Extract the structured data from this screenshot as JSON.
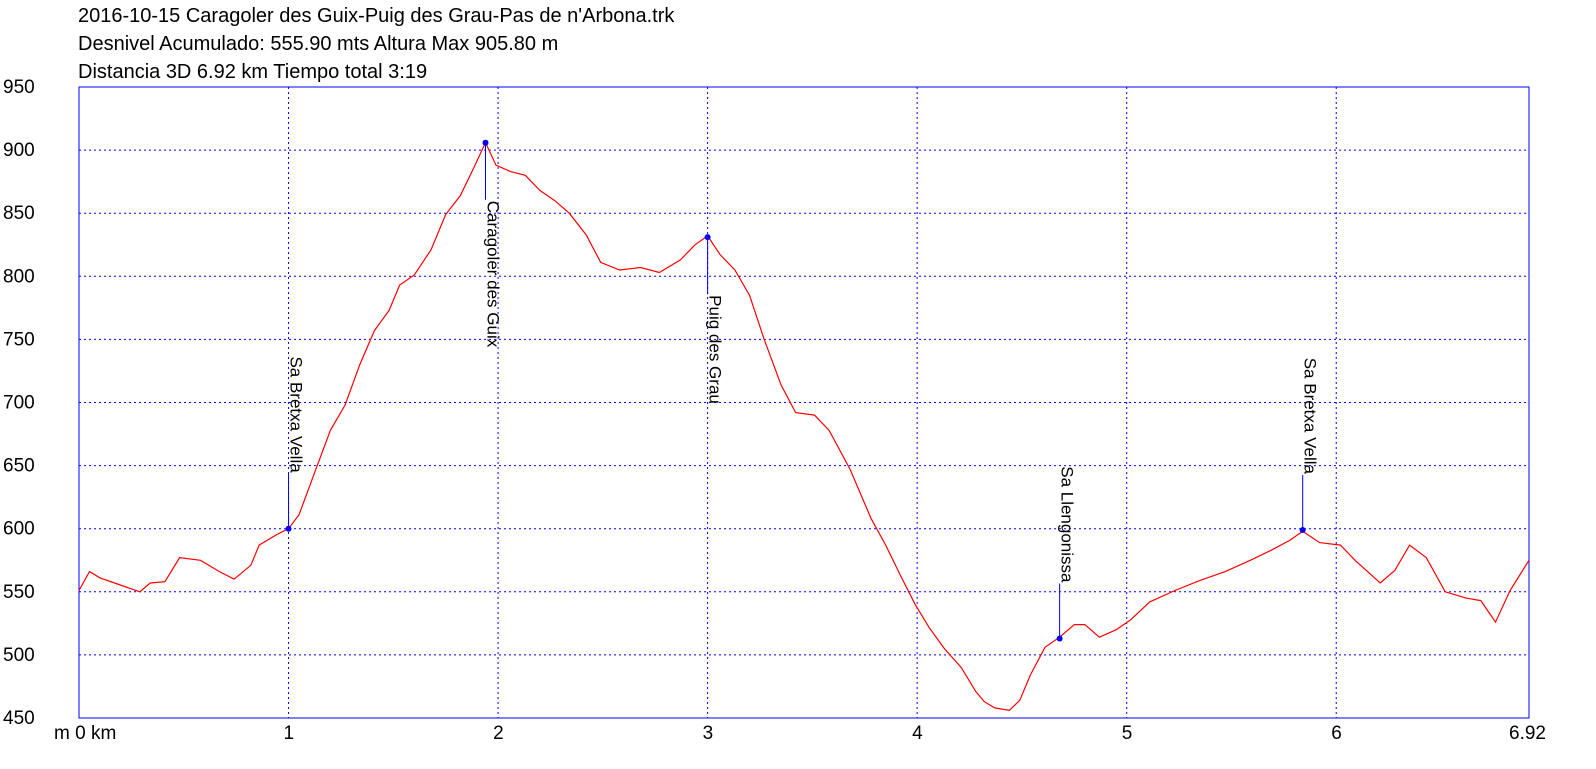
{
  "chart_data": {
    "type": "line",
    "title_lines": [
      "2016-10-15 Caragoler des Guix-Puig des Grau-Pas de n'Arbona.trk",
      "Desnivel Acumulado: 555.90 mts  Altura Max 905.80 m",
      "Distancia 3D 6.92 km  Tiempo total 3:19"
    ],
    "x": [
      0,
      0.05,
      0.1,
      0.17,
      0.29,
      0.34,
      0.41,
      0.48,
      0.58,
      0.67,
      0.74,
      0.82,
      0.86,
      0.94,
      1.0,
      1.05,
      1.13,
      1.2,
      1.27,
      1.34,
      1.41,
      1.48,
      1.53,
      1.6,
      1.68,
      1.75,
      1.82,
      1.89,
      1.94,
      1.99,
      2.06,
      2.13,
      2.2,
      2.27,
      2.34,
      2.42,
      2.49,
      2.58,
      2.68,
      2.77,
      2.87,
      2.94,
      3.0,
      3.06,
      3.13,
      3.2,
      3.27,
      3.35,
      3.42,
      3.51,
      3.58,
      3.68,
      3.78,
      3.85,
      3.92,
      3.99,
      4.06,
      4.13,
      4.21,
      4.28,
      4.32,
      4.37,
      4.44,
      4.49,
      4.54,
      4.61,
      4.68,
      4.75,
      4.8,
      4.87,
      4.95,
      5.02,
      5.11,
      5.23,
      5.35,
      5.47,
      5.59,
      5.69,
      5.78,
      5.84,
      5.92,
      6.02,
      6.09,
      6.21,
      6.28,
      6.35,
      6.43,
      6.52,
      6.62,
      6.69,
      6.76,
      6.83,
      6.92
    ],
    "values": [
      551,
      566,
      561,
      557,
      550,
      557,
      558,
      577,
      575,
      566,
      560,
      571,
      587,
      595,
      600,
      611,
      647,
      678,
      698,
      730,
      757,
      773,
      793,
      801,
      821,
      849,
      864,
      888,
      906,
      888,
      883,
      880,
      868,
      860,
      850,
      833,
      811,
      805,
      807,
      803,
      813,
      825,
      832,
      817,
      805,
      785,
      750,
      714,
      692,
      690,
      678,
      647,
      608,
      587,
      563,
      540,
      521,
      505,
      490,
      471,
      463,
      458,
      456,
      464,
      484,
      506,
      514,
      524,
      524,
      514,
      520,
      528,
      542,
      551,
      559,
      566,
      575,
      583,
      591,
      598,
      589,
      587,
      575,
      557,
      567,
      587,
      577,
      550,
      545,
      543,
      526,
      551,
      575
    ],
    "color": "#ff0000",
    "xlim": [
      0,
      6.92
    ],
    "ylim": [
      450,
      950
    ],
    "xticks": [
      {
        "value": 0,
        "label": "m 0 km"
      },
      1,
      2,
      3,
      4,
      5,
      6,
      6.92
    ],
    "yticks": [
      450,
      500,
      550,
      600,
      650,
      700,
      750,
      800,
      850,
      900,
      950
    ],
    "grid": true,
    "waypoints": [
      {
        "label": "Sa Bretxa Vella",
        "x": 1.0,
        "y": 600
      },
      {
        "label": "Caragoler des Guix",
        "x": 1.94,
        "y": 905.8
      },
      {
        "label": "Puig des Grau",
        "x": 3.0,
        "y": 831
      },
      {
        "label": "Sa Llengonissa",
        "x": 4.68,
        "y": 513
      },
      {
        "label": "Sa Bretxa Vella",
        "x": 5.84,
        "y": 599
      }
    ]
  }
}
